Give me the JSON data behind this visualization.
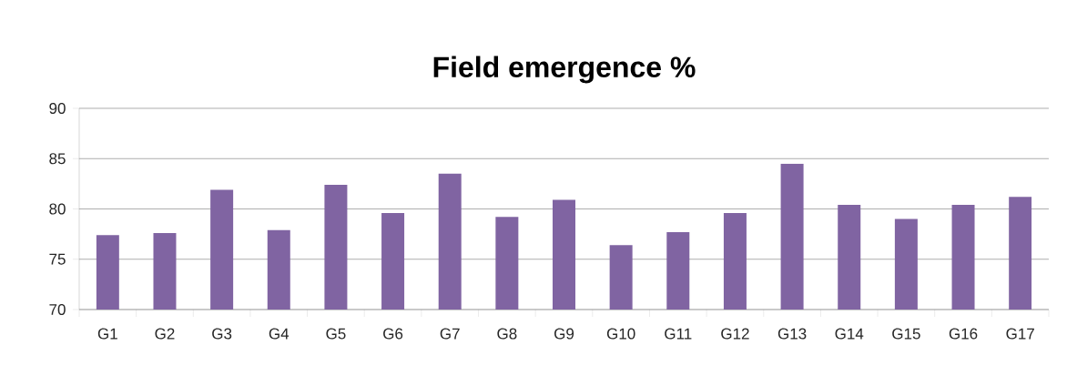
{
  "chart_data": {
    "type": "bar",
    "title": "Field emergence %",
    "categories": [
      "G1",
      "G2",
      "G3",
      "G4",
      "G5",
      "G6",
      "G7",
      "G8",
      "G9",
      "G10",
      "G11",
      "G12",
      "G13",
      "G14",
      "G15",
      "G16",
      "G17"
    ],
    "values": [
      77.4,
      77.6,
      81.9,
      77.9,
      82.4,
      79.6,
      83.5,
      79.2,
      80.9,
      76.4,
      77.7,
      79.6,
      84.5,
      80.4,
      79.0,
      80.4,
      81.2
    ],
    "color": "#8064a2",
    "ylim": [
      70,
      90
    ],
    "yticks": [
      70,
      75,
      80,
      85,
      90
    ],
    "grid": "y"
  }
}
